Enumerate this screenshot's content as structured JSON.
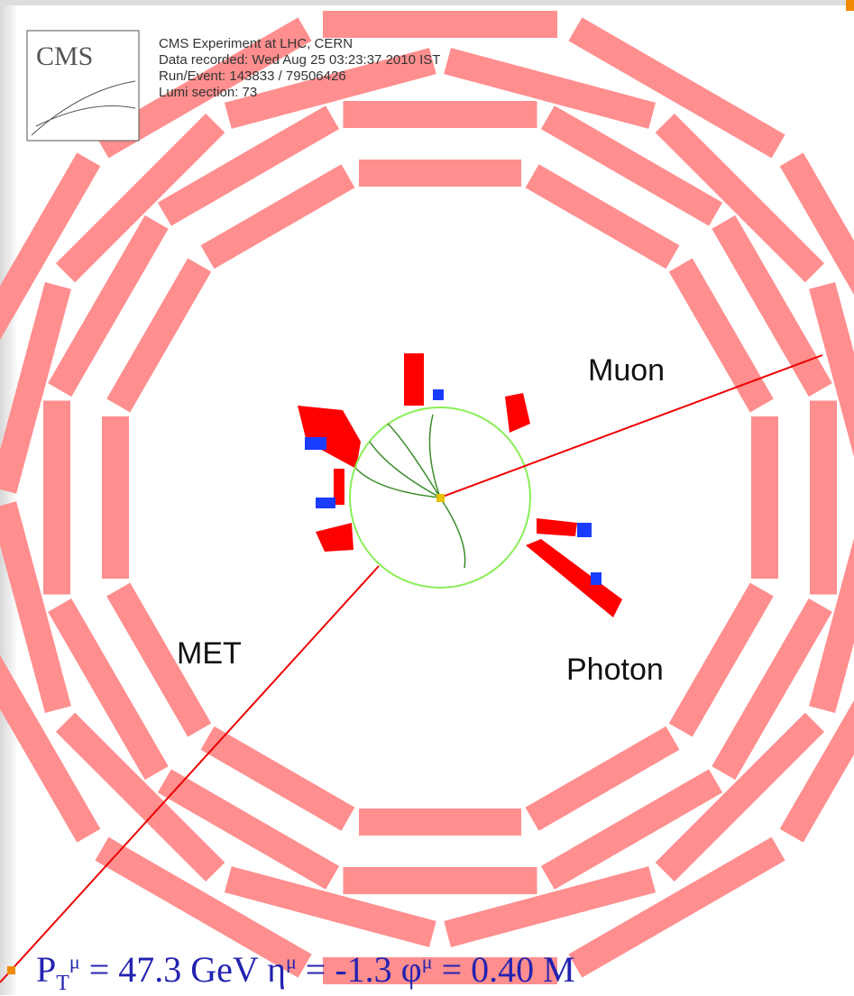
{
  "header": {
    "logo": "CMS",
    "lines": [
      "CMS Experiment at LHC, CERN",
      "Data recorded: Wed Aug 25 03:23:37 2010 IST",
      "Run/Event: 143833 / 79506426",
      "Lumi section: 73"
    ]
  },
  "labels": {
    "muon": "Muon",
    "met": "MET",
    "photon": "Photon"
  },
  "caption": {
    "parts": [
      {
        "text": "P"
      },
      {
        "text": "T",
        "style": "sub"
      },
      {
        "text": "μ",
        "style": "sup"
      },
      {
        "text": " = 47.3 GeV η"
      },
      {
        "text": "μ",
        "style": "sup"
      },
      {
        "text": " = -1.3 φ"
      },
      {
        "text": "μ",
        "style": "sup"
      },
      {
        "text": " = 0.40  M"
      }
    ]
  }
}
